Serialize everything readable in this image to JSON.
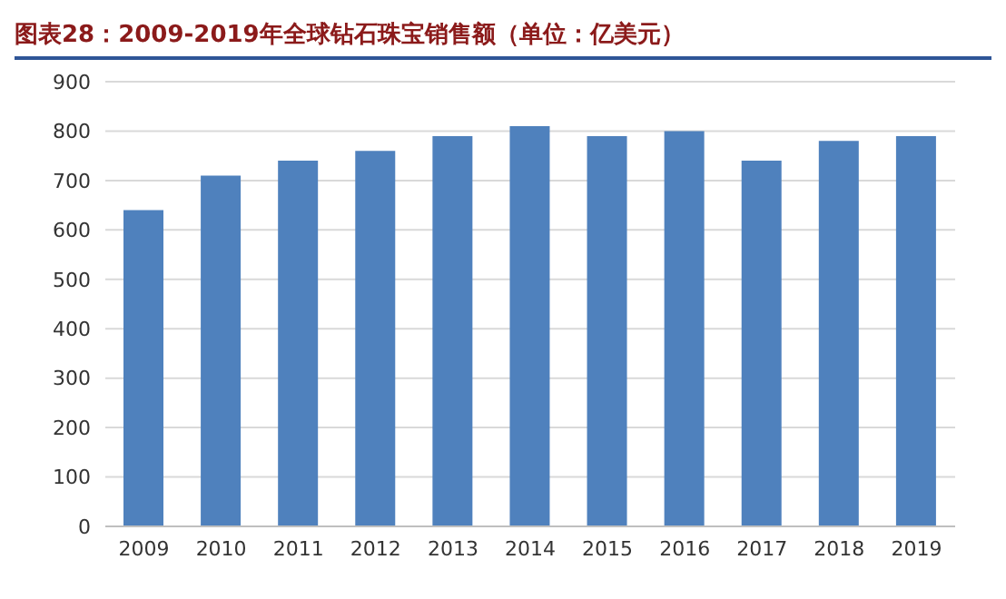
{
  "chart_data": {
    "type": "bar",
    "title": "图表28：2009-2019年全球钻石珠宝销售额（单位：亿美元）",
    "categories": [
      "2009",
      "2010",
      "2011",
      "2012",
      "2013",
      "2014",
      "2015",
      "2016",
      "2017",
      "2018",
      "2019"
    ],
    "values": [
      640,
      710,
      740,
      760,
      790,
      810,
      790,
      800,
      740,
      780,
      790
    ],
    "color": "#4f81bd",
    "ylim": [
      0,
      900
    ],
    "yticks": [
      0,
      100,
      200,
      300,
      400,
      500,
      600,
      700,
      800,
      900
    ],
    "grid": "y"
  }
}
